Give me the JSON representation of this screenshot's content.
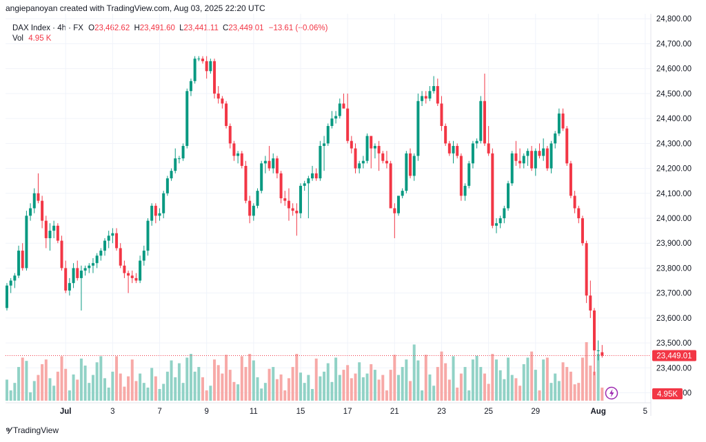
{
  "header": {
    "credit": "angiepanoyan created with TradingView.com, Aug 03, 2025 22:20 UTC"
  },
  "legend": {
    "symbol": "DAX Index · 4h · FX",
    "open_label": "O",
    "open": "23,462.62",
    "high_label": "H",
    "high": "23,491.60",
    "low_label": "L",
    "low": "23,441.11",
    "close_label": "C",
    "close": "23,449.01",
    "change": "−13.61 (−0.06%)",
    "vol_label": "Vol",
    "vol": "4.95 K"
  },
  "footer": {
    "brand": "TradingView"
  },
  "colors": {
    "up": "#089981",
    "down": "#f23645",
    "up_vol": "#91d2c6",
    "down_vol": "#f7a9a7",
    "grid": "#f0f3fa",
    "axis_text": "#131722"
  },
  "chart_data": {
    "type": "candlestick",
    "title": "DAX Index · 4h · FX",
    "xlabel": "",
    "ylabel": "",
    "ylim": [
      23260,
      24820
    ],
    "y_ticks": [
      "24,800.00",
      "24,700.00",
      "24,600.00",
      "24,500.00",
      "24,400.00",
      "24,300.00",
      "24,200.00",
      "24,100.00",
      "24,000.00",
      "23,900.00",
      "23,800.00",
      "23,700.00",
      "23,600.00",
      "23,500.00",
      "23,400.00",
      "23,300.00"
    ],
    "y_tick_values": [
      24800,
      24700,
      24600,
      24500,
      24400,
      24300,
      24200,
      24100,
      24000,
      23900,
      23800,
      23700,
      23600,
      23500,
      23400,
      23300
    ],
    "x_ticks": [
      {
        "label": "Jul",
        "index": 15
      },
      {
        "label": "3",
        "index": 27
      },
      {
        "label": "7",
        "index": 39
      },
      {
        "label": "9",
        "index": 51
      },
      {
        "label": "11",
        "index": 63
      },
      {
        "label": "15",
        "index": 75
      },
      {
        "label": "17",
        "index": 87
      },
      {
        "label": "21",
        "index": 99
      },
      {
        "label": "23",
        "index": 111
      },
      {
        "label": "25",
        "index": 123
      },
      {
        "label": "29",
        "index": 135
      },
      {
        "label": "Aug",
        "index": 151
      },
      {
        "label": "5",
        "index": 163
      }
    ],
    "last_price": "23,449.01",
    "last_price_value": 23449.01,
    "last_volume": "4.95K",
    "candles_ohlc": [
      [
        23640,
        23740,
        23630,
        23730
      ],
      [
        23730,
        23760,
        23700,
        23750
      ],
      [
        23750,
        23780,
        23720,
        23770
      ],
      [
        23770,
        23890,
        23760,
        23870
      ],
      [
        23870,
        23900,
        23790,
        23800
      ],
      [
        23800,
        24030,
        23790,
        24010
      ],
      [
        24010,
        24060,
        23990,
        24040
      ],
      [
        24040,
        24120,
        24020,
        24100
      ],
      [
        24100,
        24180,
        24060,
        24070
      ],
      [
        24070,
        24090,
        23960,
        23990
      ],
      [
        23990,
        24010,
        23880,
        23920
      ],
      [
        23920,
        23980,
        23870,
        23950
      ],
      [
        23950,
        23990,
        23920,
        23970
      ],
      [
        23970,
        23980,
        23900,
        23910
      ],
      [
        23910,
        23930,
        23790,
        23800
      ],
      [
        23800,
        23830,
        23700,
        23710
      ],
      [
        23710,
        23760,
        23690,
        23740
      ],
      [
        23740,
        23820,
        23720,
        23800
      ],
      [
        23800,
        23830,
        23750,
        23760
      ],
      [
        23760,
        23810,
        23630,
        23790
      ],
      [
        23790,
        23810,
        23770,
        23800
      ],
      [
        23800,
        23820,
        23780,
        23810
      ],
      [
        23810,
        23840,
        23780,
        23820
      ],
      [
        23820,
        23860,
        23800,
        23850
      ],
      [
        23850,
        23880,
        23830,
        23870
      ],
      [
        23870,
        23920,
        23850,
        23910
      ],
      [
        23910,
        23950,
        23880,
        23930
      ],
      [
        23930,
        23960,
        23900,
        23940
      ],
      [
        23940,
        23960,
        23870,
        23880
      ],
      [
        23880,
        23900,
        23800,
        23810
      ],
      [
        23810,
        23830,
        23760,
        23780
      ],
      [
        23780,
        23790,
        23700,
        23770
      ],
      [
        23770,
        23790,
        23740,
        23760
      ],
      [
        23760,
        23780,
        23740,
        23750
      ],
      [
        23750,
        23850,
        23740,
        23830
      ],
      [
        23830,
        23890,
        23810,
        23870
      ],
      [
        23870,
        24000,
        23850,
        23990
      ],
      [
        23990,
        24060,
        23970,
        24050
      ],
      [
        24050,
        24060,
        23980,
        24010
      ],
      [
        24010,
        24040,
        23990,
        24020
      ],
      [
        24020,
        24110,
        24000,
        24100
      ],
      [
        24100,
        24170,
        24090,
        24160
      ],
      [
        24160,
        24200,
        24150,
        24190
      ],
      [
        24190,
        24280,
        24180,
        24240
      ],
      [
        24240,
        24250,
        24220,
        24240
      ],
      [
        24240,
        24300,
        24230,
        24290
      ],
      [
        24290,
        24520,
        24280,
        24510
      ],
      [
        24510,
        24560,
        24490,
        24550
      ],
      [
        24550,
        24650,
        24540,
        24640
      ],
      [
        24640,
        24650,
        24630,
        24640
      ],
      [
        24640,
        24650,
        24620,
        24630
      ],
      [
        24630,
        24650,
        24560,
        24590
      ],
      [
        24590,
        24640,
        24580,
        24630
      ],
      [
        24630,
        24640,
        24480,
        24500
      ],
      [
        24500,
        24530,
        24460,
        24480
      ],
      [
        24480,
        24490,
        24440,
        24460
      ],
      [
        24460,
        24470,
        24360,
        24370
      ],
      [
        24370,
        24380,
        24280,
        24300
      ],
      [
        24300,
        24310,
        24230,
        24250
      ],
      [
        24250,
        24270,
        24220,
        24260
      ],
      [
        24260,
        24270,
        24200,
        24210
      ],
      [
        24210,
        24230,
        24060,
        24070
      ],
      [
        24070,
        24090,
        23980,
        24010
      ],
      [
        24010,
        24060,
        23990,
        24050
      ],
      [
        24050,
        24120,
        24040,
        24110
      ],
      [
        24110,
        24230,
        24100,
        24220
      ],
      [
        24220,
        24250,
        24180,
        24230
      ],
      [
        24230,
        24290,
        24190,
        24200
      ],
      [
        24200,
        24260,
        24180,
        24240
      ],
      [
        24240,
        24250,
        24160,
        24180
      ],
      [
        24180,
        24190,
        24060,
        24080
      ],
      [
        24080,
        24110,
        24050,
        24070
      ],
      [
        24070,
        24120,
        23990,
        24040
      ],
      [
        24040,
        24060,
        24010,
        24030
      ],
      [
        24030,
        24060,
        23930,
        24020
      ],
      [
        24020,
        24140,
        24000,
        24130
      ],
      [
        24130,
        24150,
        24110,
        24140
      ],
      [
        24140,
        24170,
        24000,
        24160
      ],
      [
        24160,
        24210,
        24150,
        24180
      ],
      [
        24180,
        24200,
        24150,
        24160
      ],
      [
        24160,
        24310,
        24150,
        24290
      ],
      [
        24290,
        24330,
        24190,
        24300
      ],
      [
        24300,
        24380,
        24290,
        24370
      ],
      [
        24370,
        24430,
        24360,
        24400
      ],
      [
        24400,
        24430,
        24380,
        24410
      ],
      [
        24410,
        24480,
        24400,
        24460
      ],
      [
        24460,
        24500,
        24440,
        24440
      ],
      [
        24440,
        24500,
        24300,
        24310
      ],
      [
        24310,
        24330,
        24260,
        24280
      ],
      [
        24280,
        24300,
        24180,
        24200
      ],
      [
        24200,
        24230,
        24180,
        24220
      ],
      [
        24220,
        24250,
        24200,
        24230
      ],
      [
        24230,
        24340,
        24220,
        24330
      ],
      [
        24330,
        24330,
        24200,
        24280
      ],
      [
        24280,
        24300,
        24240,
        24290
      ],
      [
        24290,
        24310,
        24190,
        24260
      ],
      [
        24260,
        24270,
        24220,
        24230
      ],
      [
        24230,
        24270,
        24200,
        24220
      ],
      [
        24220,
        24230,
        24040,
        24040
      ],
      [
        24040,
        24060,
        23920,
        24020
      ],
      [
        24020,
        24090,
        24010,
        24090
      ],
      [
        24090,
        24120,
        24080,
        24110
      ],
      [
        24110,
        24270,
        24100,
        24260
      ],
      [
        24260,
        24280,
        24160,
        24170
      ],
      [
        24170,
        24260,
        24150,
        24250
      ],
      [
        24250,
        24500,
        24230,
        24470
      ],
      [
        24470,
        24510,
        24450,
        24490
      ],
      [
        24490,
        24510,
        24460,
        24480
      ],
      [
        24480,
        24530,
        24470,
        24510
      ],
      [
        24510,
        24570,
        24500,
        24530
      ],
      [
        24530,
        24560,
        24450,
        24460
      ],
      [
        24460,
        24490,
        24350,
        24370
      ],
      [
        24370,
        24380,
        24290,
        24300
      ],
      [
        24300,
        24310,
        24250,
        24260
      ],
      [
        24260,
        24310,
        24220,
        24290
      ],
      [
        24290,
        24300,
        24240,
        24250
      ],
      [
        24250,
        24260,
        24070,
        24090
      ],
      [
        24090,
        24140,
        24070,
        24130
      ],
      [
        24130,
        24230,
        24120,
        24220
      ],
      [
        24220,
        24310,
        24200,
        24300
      ],
      [
        24300,
        24320,
        24280,
        24310
      ],
      [
        24310,
        24490,
        24300,
        24470
      ],
      [
        24470,
        24580,
        24290,
        24300
      ],
      [
        24300,
        24370,
        24250,
        24260
      ],
      [
        24260,
        24280,
        23960,
        23970
      ],
      [
        23970,
        24000,
        23940,
        23980
      ],
      [
        23980,
        24010,
        23960,
        24000
      ],
      [
        24000,
        24050,
        23980,
        24040
      ],
      [
        24040,
        24150,
        24030,
        24140
      ],
      [
        24140,
        24270,
        24130,
        24260
      ],
      [
        24260,
        24310,
        24210,
        24230
      ],
      [
        24230,
        24280,
        24200,
        24220
      ],
      [
        24220,
        24260,
        24200,
        24250
      ],
      [
        24250,
        24280,
        24210,
        24270
      ],
      [
        24270,
        24290,
        24190,
        24200
      ],
      [
        24200,
        24280,
        24170,
        24270
      ],
      [
        24270,
        24300,
        24240,
        24250
      ],
      [
        24250,
        24320,
        24230,
        24280
      ],
      [
        24280,
        24290,
        24190,
        24200
      ],
      [
        24200,
        24310,
        24180,
        24300
      ],
      [
        24300,
        24350,
        24280,
        24340
      ],
      [
        24340,
        24440,
        24330,
        24420
      ],
      [
        24420,
        24440,
        24350,
        24360
      ],
      [
        24360,
        24370,
        24210,
        24220
      ],
      [
        24220,
        24230,
        24080,
        24090
      ],
      [
        24090,
        24110,
        24020,
        24040
      ],
      [
        24040,
        24050,
        23980,
        24000
      ],
      [
        24000,
        24010,
        23890,
        23900
      ],
      [
        23900,
        23910,
        23660,
        23690
      ],
      [
        23690,
        23750,
        23600,
        23630
      ],
      [
        23630,
        23640,
        23370,
        23470
      ],
      [
        23470,
        23510,
        23430,
        23470
      ],
      [
        23462.62,
        23491.6,
        23441.11,
        23449.01
      ]
    ],
    "volumes": [
      0.45,
      0.22,
      0.38,
      0.72,
      0.92,
      0.85,
      0.18,
      0.42,
      0.55,
      0.78,
      0.88,
      0.48,
      0.32,
      0.62,
      0.95,
      0.68,
      0.22,
      0.56,
      0.45,
      0.9,
      0.75,
      0.38,
      0.55,
      0.82,
      0.95,
      0.48,
      0.28,
      0.62,
      0.95,
      0.58,
      0.3,
      0.52,
      0.88,
      0.42,
      0.58,
      0.38,
      0.28,
      0.7,
      0.52,
      0.25,
      0.36,
      0.62,
      0.86,
      0.5,
      0.8,
      0.38,
      0.92,
      1.0,
      0.62,
      0.72,
      0.5,
      0.22,
      0.32,
      0.88,
      0.76,
      0.58,
      0.98,
      0.66,
      0.4,
      0.35,
      0.95,
      0.72,
      1.0,
      0.86,
      0.5,
      0.26,
      0.38,
      0.68,
      0.72,
      0.46,
      0.56,
      0.22,
      0.48,
      0.72,
      1.0,
      0.6,
      0.38,
      0.55,
      0.25,
      0.9,
      0.52,
      0.62,
      0.8,
      0.4,
      0.92,
      0.55,
      0.66,
      0.76,
      0.48,
      0.58,
      0.82,
      0.5,
      0.58,
      0.78,
      0.66,
      0.45,
      0.55,
      0.22,
      0.66,
      0.98,
      0.55,
      0.72,
      0.88,
      0.42,
      1.2,
      0.86,
      0.22,
      0.98,
      0.56,
      0.32,
      0.72,
      1.05,
      0.8,
      0.45,
      0.95,
      0.28,
      0.58,
      0.72,
      0.22,
      0.88,
      0.96,
      0.72,
      0.58,
      0.36,
      1.0,
      0.88,
      0.65,
      0.46,
      0.92,
      0.55,
      0.48,
      0.32,
      0.78,
      0.92,
      1.05,
      0.66,
      0.22,
      0.88,
      0.92,
      0.38,
      0.58,
      0.42,
      0.82,
      0.72,
      0.62,
      0.35,
      0.38,
      0.92,
      1.25,
      0.75,
      0.62,
      1.0,
      0.28
    ]
  }
}
